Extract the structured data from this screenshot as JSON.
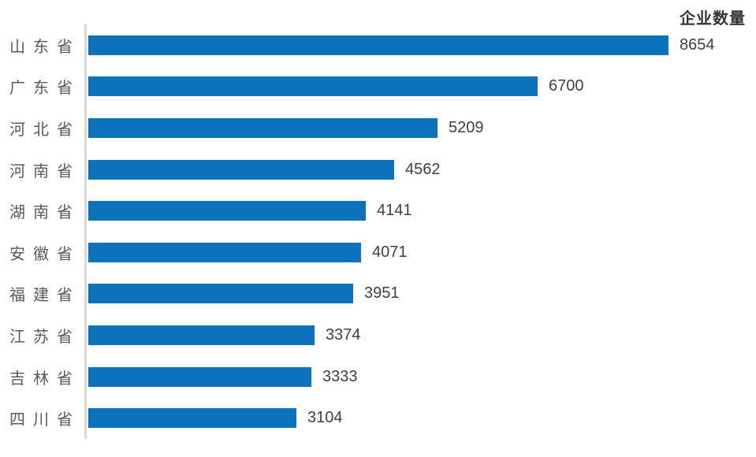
{
  "page": {
    "background": "#ffffff"
  },
  "chart_data": {
    "type": "bar",
    "orientation": "horizontal",
    "title": "企业数量",
    "categories": [
      "山东省",
      "广东省",
      "河北省",
      "河南省",
      "湖南省",
      "安徽省",
      "福建省",
      "江苏省",
      "吉林省",
      "四川省"
    ],
    "values": [
      8654,
      6700,
      5209,
      4562,
      4141,
      4071,
      3951,
      3374,
      3333,
      3104
    ],
    "value_labels": [
      "8654",
      "6700",
      "5209",
      "4562",
      "4141",
      "4071",
      "3951",
      "3374",
      "3333",
      "3104"
    ],
    "xlim": [
      0,
      8654
    ],
    "grid": false,
    "legend": false,
    "colors": {
      "bar": "#0d72bc",
      "axis_line": "#d9d9d9",
      "category_label": "#595959",
      "value_label": "#3f3f3f",
      "title": "#333333"
    }
  }
}
